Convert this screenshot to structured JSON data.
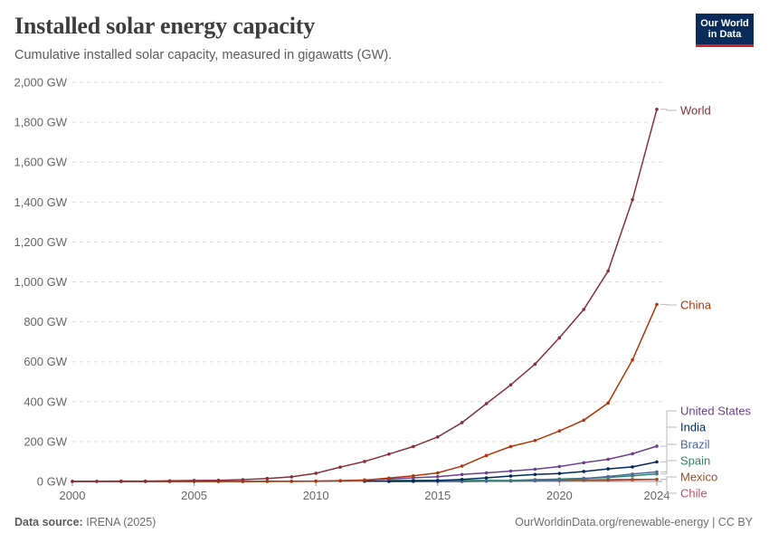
{
  "header": {
    "title": "Installed solar energy capacity",
    "subtitle": "Cumulative installed solar capacity, measured in gigawatts (GW).",
    "logo_line1": "Our World",
    "logo_line2": "in Data"
  },
  "footer": {
    "source_label": "Data source:",
    "source_value": "IRENA (2025)",
    "url": "OurWorldinData.org/renewable-energy | CC BY"
  },
  "chart_data": {
    "type": "line",
    "title": "Installed solar energy capacity",
    "subtitle": "Cumulative installed solar capacity, measured in gigawatts (GW).",
    "xlabel": "",
    "ylabel": "",
    "unit": "GW",
    "ylim": [
      0,
      2000
    ],
    "xlim": [
      2000,
      2024
    ],
    "y_ticks": [
      0,
      200,
      400,
      600,
      800,
      1000,
      1200,
      1400,
      1600,
      1800,
      2000
    ],
    "y_tick_labels": [
      "0 GW",
      "200 GW",
      "400 GW",
      "600 GW",
      "800 GW",
      "1,000 GW",
      "1,200 GW",
      "1,400 GW",
      "1,600 GW",
      "1,800 GW",
      "2,000 GW"
    ],
    "x_ticks": [
      2000,
      2005,
      2010,
      2015,
      2020,
      2024
    ],
    "x_tick_labels": [
      "2000",
      "2005",
      "2010",
      "2015",
      "2020",
      "2024"
    ],
    "grid": "horizontal dashed",
    "legend": "line end labels on right",
    "series": [
      {
        "name": "World",
        "color": "#883039",
        "x": [
          2000,
          2001,
          2002,
          2003,
          2004,
          2005,
          2006,
          2007,
          2008,
          2009,
          2010,
          2011,
          2012,
          2013,
          2014,
          2015,
          2016,
          2017,
          2018,
          2019,
          2020,
          2021,
          2022,
          2023,
          2024
        ],
        "y": [
          1,
          1,
          2,
          2,
          3,
          5,
          6,
          9,
          15,
          23,
          41,
          72,
          100,
          137,
          175,
          223,
          295,
          390,
          484,
          588,
          720,
          862,
          1055,
          1412,
          1865
        ]
      },
      {
        "name": "China",
        "color": "#b13507",
        "x": [
          2000,
          2001,
          2002,
          2003,
          2004,
          2005,
          2006,
          2007,
          2008,
          2009,
          2010,
          2011,
          2012,
          2013,
          2014,
          2015,
          2016,
          2017,
          2018,
          2019,
          2020,
          2021,
          2022,
          2023,
          2024
        ],
        "y": [
          0,
          0,
          0,
          0,
          0,
          0,
          0,
          0,
          0,
          0.4,
          1,
          3,
          7,
          17,
          28,
          43,
          77,
          130,
          175,
          205,
          253,
          307,
          393,
          609,
          887
        ]
      },
      {
        "name": "United States",
        "color": "#6d3e91",
        "x": [
          2000,
          2001,
          2002,
          2003,
          2004,
          2005,
          2006,
          2007,
          2008,
          2009,
          2010,
          2011,
          2012,
          2013,
          2014,
          2015,
          2016,
          2017,
          2018,
          2019,
          2020,
          2021,
          2022,
          2023,
          2024
        ],
        "y": [
          0,
          0,
          0,
          0,
          0,
          0,
          0,
          0,
          1,
          1,
          2,
          4,
          7,
          12,
          18,
          24,
          35,
          43,
          52,
          61,
          75,
          94,
          111,
          139,
          177
        ]
      },
      {
        "name": "India",
        "color": "#00295b",
        "x": [
          2012,
          2013,
          2014,
          2015,
          2016,
          2017,
          2018,
          2019,
          2020,
          2021,
          2022,
          2023,
          2024
        ],
        "y": [
          1,
          2,
          3,
          5,
          10,
          18,
          27,
          35,
          40,
          50,
          63,
          73,
          98
        ]
      },
      {
        "name": "Brazil",
        "color": "#4c6a9c",
        "x": [
          2013,
          2014,
          2015,
          2016,
          2017,
          2018,
          2019,
          2020,
          2021,
          2022,
          2023,
          2024
        ],
        "y": [
          0,
          0,
          0,
          0.1,
          1,
          2,
          4,
          8,
          14,
          25,
          37,
          48
        ]
      },
      {
        "name": "Spain",
        "color": "#2c8465",
        "x": [
          2013,
          2014,
          2015,
          2016,
          2017,
          2018,
          2019,
          2020,
          2021,
          2022,
          2023,
          2024
        ],
        "y": [
          5,
          5,
          5,
          5,
          5,
          5,
          9,
          12,
          16,
          20,
          28,
          38
        ]
      },
      {
        "name": "Mexico",
        "color": "#9a5129",
        "x": [
          2013,
          2014,
          2015,
          2016,
          2017,
          2018,
          2019,
          2020,
          2021,
          2022,
          2023,
          2024
        ],
        "y": [
          0,
          0,
          0,
          0,
          1,
          3,
          5,
          6,
          8,
          9,
          10,
          11
        ]
      },
      {
        "name": "Chile",
        "color": "#c15065",
        "x": [
          2013,
          2014,
          2015,
          2016,
          2017,
          2018,
          2019,
          2020,
          2021,
          2022,
          2023,
          2024
        ],
        "y": [
          0,
          0,
          1,
          1,
          2,
          2,
          3,
          4,
          5,
          6,
          8,
          10
        ]
      }
    ]
  }
}
